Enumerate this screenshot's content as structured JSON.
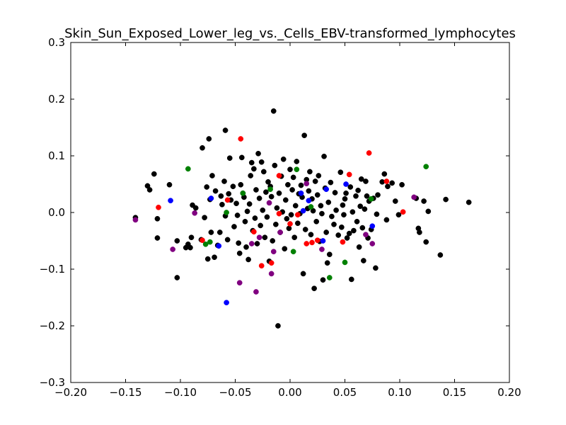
{
  "chart_data": {
    "type": "scatter",
    "title": "Skin_Sun_Exposed_Lower_leg_vs._Cells_EBV-transformed_lymphocytes",
    "xlabel": "",
    "ylabel": "",
    "xlim": [
      -0.2,
      0.2
    ],
    "ylim": [
      -0.3,
      0.3
    ],
    "x_ticks": [
      -0.2,
      -0.15,
      -0.1,
      -0.05,
      0.0,
      0.05,
      0.1,
      0.15,
      0.2
    ],
    "y_ticks": [
      -0.3,
      -0.2,
      -0.1,
      0.0,
      0.1,
      0.2,
      0.3
    ],
    "x_tick_labels": [
      "−0.20",
      "−0.15",
      "−0.10",
      "−0.05",
      "0.00",
      "0.05",
      "0.10",
      "0.15",
      "0.20"
    ],
    "y_tick_labels": [
      "−0.3",
      "−0.2",
      "−0.1",
      "0.0",
      "0.1",
      "0.2",
      "0.3"
    ],
    "grid": false,
    "legend": "none",
    "series": [
      {
        "color": "#000000",
        "points": [
          [
            -0.141,
            -0.009
          ],
          [
            -0.13,
            0.047
          ],
          [
            -0.128,
            0.04
          ],
          [
            -0.124,
            0.068
          ],
          [
            -0.121,
            -0.011
          ],
          [
            -0.121,
            -0.045
          ],
          [
            -0.11,
            0.049
          ],
          [
            -0.103,
            -0.115
          ],
          [
            -0.103,
            -0.05
          ],
          [
            -0.095,
            -0.062
          ],
          [
            -0.093,
            -0.056
          ],
          [
            -0.091,
            -0.062
          ],
          [
            -0.09,
            -0.044
          ],
          [
            -0.089,
            0.013
          ],
          [
            -0.086,
            0.008
          ],
          [
            -0.081,
            -0.048
          ],
          [
            -0.08,
            0.114
          ],
          [
            -0.078,
            -0.009
          ],
          [
            -0.076,
            0.045
          ],
          [
            -0.075,
            -0.082
          ],
          [
            -0.074,
            0.13
          ],
          [
            -0.073,
            0.023
          ],
          [
            -0.072,
            -0.035
          ],
          [
            -0.071,
            0.065
          ],
          [
            -0.069,
            -0.079
          ],
          [
            -0.068,
            0.038
          ],
          [
            -0.066,
            -0.058
          ],
          [
            -0.064,
            -0.035
          ],
          [
            -0.063,
            0.029
          ],
          [
            -0.062,
            0.014
          ],
          [
            -0.06,
            0.055
          ],
          [
            -0.059,
            0.145
          ],
          [
            -0.059,
            -0.006
          ],
          [
            -0.057,
            -0.048
          ],
          [
            -0.056,
            0.033
          ],
          [
            -0.055,
            0.096
          ],
          [
            -0.054,
            0.022
          ],
          [
            -0.052,
            0.046
          ],
          [
            -0.051,
            -0.025
          ],
          [
            -0.049,
            0.016
          ],
          [
            -0.048,
            -0.005
          ],
          [
            -0.047,
            -0.054
          ],
          [
            -0.046,
            -0.072
          ],
          [
            -0.045,
            0.049
          ],
          [
            -0.044,
            0.097
          ],
          [
            -0.043,
            0.034
          ],
          [
            -0.042,
            0.027
          ],
          [
            -0.041,
            -0.016
          ],
          [
            -0.04,
            -0.061
          ],
          [
            -0.039,
            0.002
          ],
          [
            -0.038,
            -0.083
          ],
          [
            -0.037,
            0.015
          ],
          [
            -0.036,
            0.065
          ],
          [
            -0.035,
            0.088
          ],
          [
            -0.034,
            -0.032
          ],
          [
            -0.033,
            0.077
          ],
          [
            -0.032,
            -0.01
          ],
          [
            -0.031,
            0.04
          ],
          [
            -0.03,
            -0.055
          ],
          [
            -0.029,
            0.104
          ],
          [
            -0.028,
            0.025
          ],
          [
            -0.027,
            -0.023
          ],
          [
            -0.026,
            0.089
          ],
          [
            -0.025,
            0.004
          ],
          [
            -0.024,
            0.072
          ],
          [
            -0.023,
            -0.044
          ],
          [
            -0.022,
            0.036
          ],
          [
            -0.021,
            -0.008
          ],
          [
            -0.02,
            0.054
          ],
          [
            -0.019,
            -0.086
          ],
          [
            -0.018,
            0.046
          ],
          [
            -0.017,
            0.028
          ],
          [
            -0.016,
            -0.05
          ],
          [
            -0.015,
            0.179
          ],
          [
            -0.014,
            0.083
          ],
          [
            -0.013,
            -0.021
          ],
          [
            -0.012,
            0.008
          ],
          [
            -0.011,
            -0.2
          ],
          [
            -0.01,
            0.034
          ],
          [
            -0.009,
            -0.035
          ],
          [
            -0.008,
            0.064
          ],
          [
            -0.007,
            0.001
          ],
          [
            -0.006,
            0.094
          ],
          [
            -0.005,
            -0.064
          ],
          [
            -0.004,
            0.022
          ],
          [
            -0.003,
            -0.011
          ],
          [
            -0.002,
            0.049
          ],
          [
            -0.001,
            -0.028
          ],
          [
            0.0,
            0.076
          ],
          [
            0.001,
            -0.004
          ],
          [
            0.002,
            0.04
          ],
          [
            0.003,
            0.062
          ],
          [
            0.004,
            -0.044
          ],
          [
            0.005,
            0.012
          ],
          [
            0.006,
            0.09
          ],
          [
            0.007,
            -0.019
          ],
          [
            0.008,
            0.033
          ],
          [
            0.009,
            -0.002
          ],
          [
            0.01,
            0.048
          ],
          [
            0.011,
            0.027
          ],
          [
            0.012,
            -0.108
          ],
          [
            0.013,
            0.136
          ],
          [
            0.014,
            -0.03
          ],
          [
            0.015,
            0.058
          ],
          [
            0.016,
            0.007
          ],
          [
            0.017,
            0.038
          ],
          [
            0.018,
            0.072
          ],
          [
            0.019,
            -0.039
          ],
          [
            0.02,
            0.024
          ],
          [
            0.021,
            0.003
          ],
          [
            0.022,
            -0.134
          ],
          [
            0.023,
            0.055
          ],
          [
            0.024,
            -0.016
          ],
          [
            0.025,
            0.031
          ],
          [
            0.026,
            0.065
          ],
          [
            0.027,
            -0.051
          ],
          [
            0.028,
            0.012
          ],
          [
            0.029,
            -0.002
          ],
          [
            0.03,
            -0.119
          ],
          [
            0.031,
            0.099
          ],
          [
            0.032,
            0.043
          ],
          [
            0.033,
            -0.035
          ],
          [
            0.034,
            -0.089
          ],
          [
            0.035,
            0.018
          ],
          [
            0.036,
            -0.074
          ],
          [
            0.037,
            0.053
          ],
          [
            0.038,
            -0.007
          ],
          [
            0.04,
            -0.021
          ],
          [
            0.041,
            0.035
          ],
          [
            0.042,
            0.004
          ],
          [
            0.044,
            -0.04
          ],
          [
            0.046,
            0.071
          ],
          [
            0.047,
            -0.026
          ],
          [
            0.048,
            0.013
          ],
          [
            0.049,
            -0.004
          ],
          [
            0.05,
            0.024
          ],
          [
            0.051,
            0.034
          ],
          [
            0.052,
            -0.045
          ],
          [
            0.054,
            -0.037
          ],
          [
            0.055,
            0.045
          ],
          [
            0.056,
            -0.118
          ],
          [
            0.057,
            0.001
          ],
          [
            0.058,
            -0.032
          ],
          [
            0.06,
            0.029
          ],
          [
            0.061,
            -0.016
          ],
          [
            0.062,
            0.039
          ],
          [
            0.063,
            -0.061
          ],
          [
            0.064,
            0.011
          ],
          [
            0.065,
            0.059
          ],
          [
            0.066,
            -0.027
          ],
          [
            0.067,
            -0.085
          ],
          [
            0.068,
            0.006
          ],
          [
            0.069,
            0.055
          ],
          [
            0.07,
            0.029
          ],
          [
            0.071,
            -0.045
          ],
          [
            0.072,
            0.02
          ],
          [
            0.074,
            -0.03
          ],
          [
            0.076,
            0.025
          ],
          [
            0.078,
            -0.098
          ],
          [
            0.079,
            -0.003
          ],
          [
            0.08,
            0.031
          ],
          [
            0.084,
            0.054
          ],
          [
            0.086,
            0.068
          ],
          [
            0.088,
            -0.013
          ],
          [
            0.089,
            0.046
          ],
          [
            0.093,
            0.052
          ],
          [
            0.096,
            0.02
          ],
          [
            0.099,
            -0.004
          ],
          [
            0.102,
            0.049
          ],
          [
            0.115,
            0.025
          ],
          [
            0.117,
            -0.028
          ],
          [
            0.118,
            -0.035
          ],
          [
            0.122,
            0.02
          ],
          [
            0.124,
            -0.052
          ],
          [
            0.126,
            0.002
          ],
          [
            0.137,
            -0.075
          ],
          [
            0.142,
            0.023
          ],
          [
            0.163,
            0.018
          ]
        ]
      },
      {
        "color": "#ff0000",
        "points": [
          [
            -0.12,
            0.009
          ],
          [
            -0.08,
            -0.049
          ],
          [
            -0.057,
            0.022
          ],
          [
            -0.045,
            0.13
          ],
          [
            -0.033,
            -0.034
          ],
          [
            -0.026,
            -0.094
          ],
          [
            -0.017,
            -0.089
          ],
          [
            -0.01,
            0.065
          ],
          [
            -0.01,
            -0.002
          ],
          [
            0.0,
            -0.02
          ],
          [
            0.007,
            -0.004
          ],
          [
            0.015,
            -0.055
          ],
          [
            0.02,
            -0.053
          ],
          [
            0.025,
            -0.049
          ],
          [
            0.048,
            -0.052
          ],
          [
            0.054,
            0.067
          ],
          [
            0.072,
            0.105
          ],
          [
            0.088,
            0.055
          ],
          [
            0.103,
            0.001
          ]
        ]
      },
      {
        "color": "#0000ff",
        "points": [
          [
            -0.109,
            0.021
          ],
          [
            -0.072,
            0.025
          ],
          [
            -0.065,
            -0.059
          ],
          [
            -0.058,
            -0.159
          ],
          [
            0.01,
            0.034
          ],
          [
            0.012,
            0.003
          ],
          [
            0.017,
            0.021
          ],
          [
            0.03,
            -0.05
          ],
          [
            0.033,
            0.041
          ],
          [
            0.051,
            0.05
          ],
          [
            0.075,
            -0.024
          ]
        ]
      },
      {
        "color": "#008000",
        "points": [
          [
            -0.093,
            0.077
          ],
          [
            -0.077,
            -0.056
          ],
          [
            -0.073,
            -0.052
          ],
          [
            -0.058,
            0.0
          ],
          [
            -0.043,
            0.034
          ],
          [
            -0.018,
            0.041
          ],
          [
            0.003,
            -0.069
          ],
          [
            0.006,
            0.076
          ],
          [
            0.019,
            0.01
          ],
          [
            0.036,
            -0.115
          ],
          [
            0.05,
            -0.088
          ],
          [
            0.074,
            0.024
          ],
          [
            0.124,
            0.081
          ]
        ]
      },
      {
        "color": "#800080",
        "points": [
          [
            -0.141,
            -0.013
          ],
          [
            -0.107,
            -0.065
          ],
          [
            -0.087,
            -0.001
          ],
          [
            -0.046,
            -0.124
          ],
          [
            -0.035,
            -0.055
          ],
          [
            -0.031,
            -0.14
          ],
          [
            -0.028,
            -0.044
          ],
          [
            -0.017,
            -0.108
          ],
          [
            -0.015,
            -0.069
          ],
          [
            -0.009,
            -0.035
          ],
          [
            -0.019,
            0.017
          ],
          [
            0.015,
            0.051
          ],
          [
            0.029,
            -0.065
          ],
          [
            0.069,
            -0.039
          ],
          [
            0.075,
            -0.055
          ],
          [
            0.113,
            0.027
          ]
        ]
      }
    ]
  }
}
